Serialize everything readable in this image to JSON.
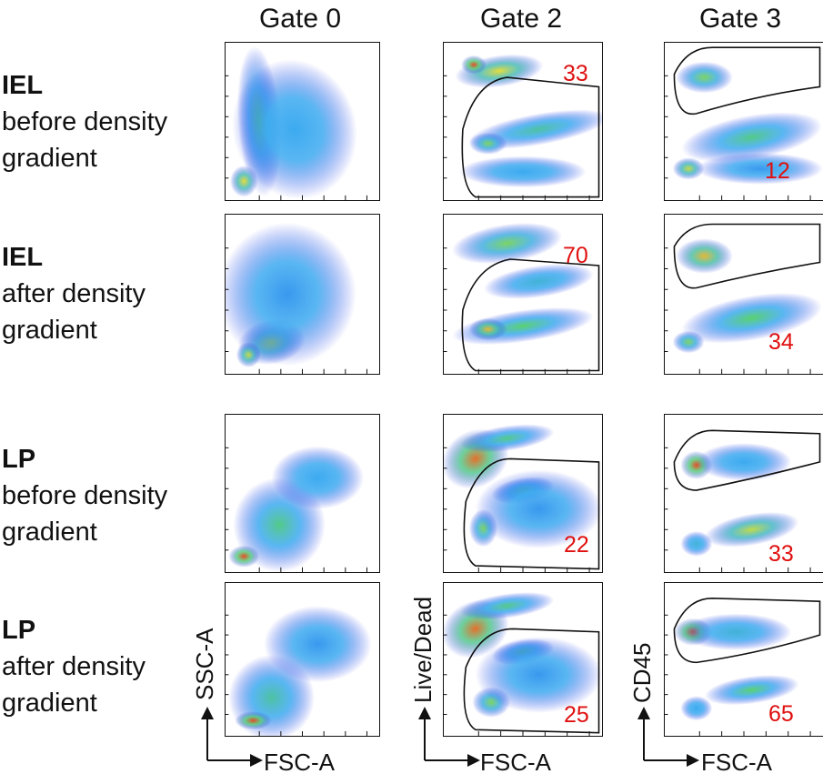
{
  "columns": [
    {
      "title": "Gate 0"
    },
    {
      "title": "Gate 2"
    },
    {
      "title": "Gate 3"
    }
  ],
  "rows": [
    {
      "tissue": "IEL",
      "line1": "before density",
      "line2": "gradient",
      "gate2_pct": "33",
      "gate3_pct": "12"
    },
    {
      "tissue": "IEL",
      "line1": "after density",
      "line2": "gradient",
      "gate2_pct": "70",
      "gate3_pct": "34"
    },
    {
      "tissue": "LP",
      "line1": "before density",
      "line2": "gradient",
      "gate2_pct": "22",
      "gate3_pct": "33"
    },
    {
      "tissue": "LP",
      "line1": "after density",
      "line2": "gradient",
      "gate2_pct": "25",
      "gate3_pct": "65"
    }
  ],
  "axes": {
    "gate0_x": "FSC-A",
    "gate0_y": "SSC-A",
    "gate2_x": "FSC-A",
    "gate2_y": "Live/Dead",
    "gate3_x": "FSC-A",
    "gate3_y": "CD45"
  },
  "colors": {
    "percent": "#e01010",
    "gate_outline": "#111111"
  }
}
